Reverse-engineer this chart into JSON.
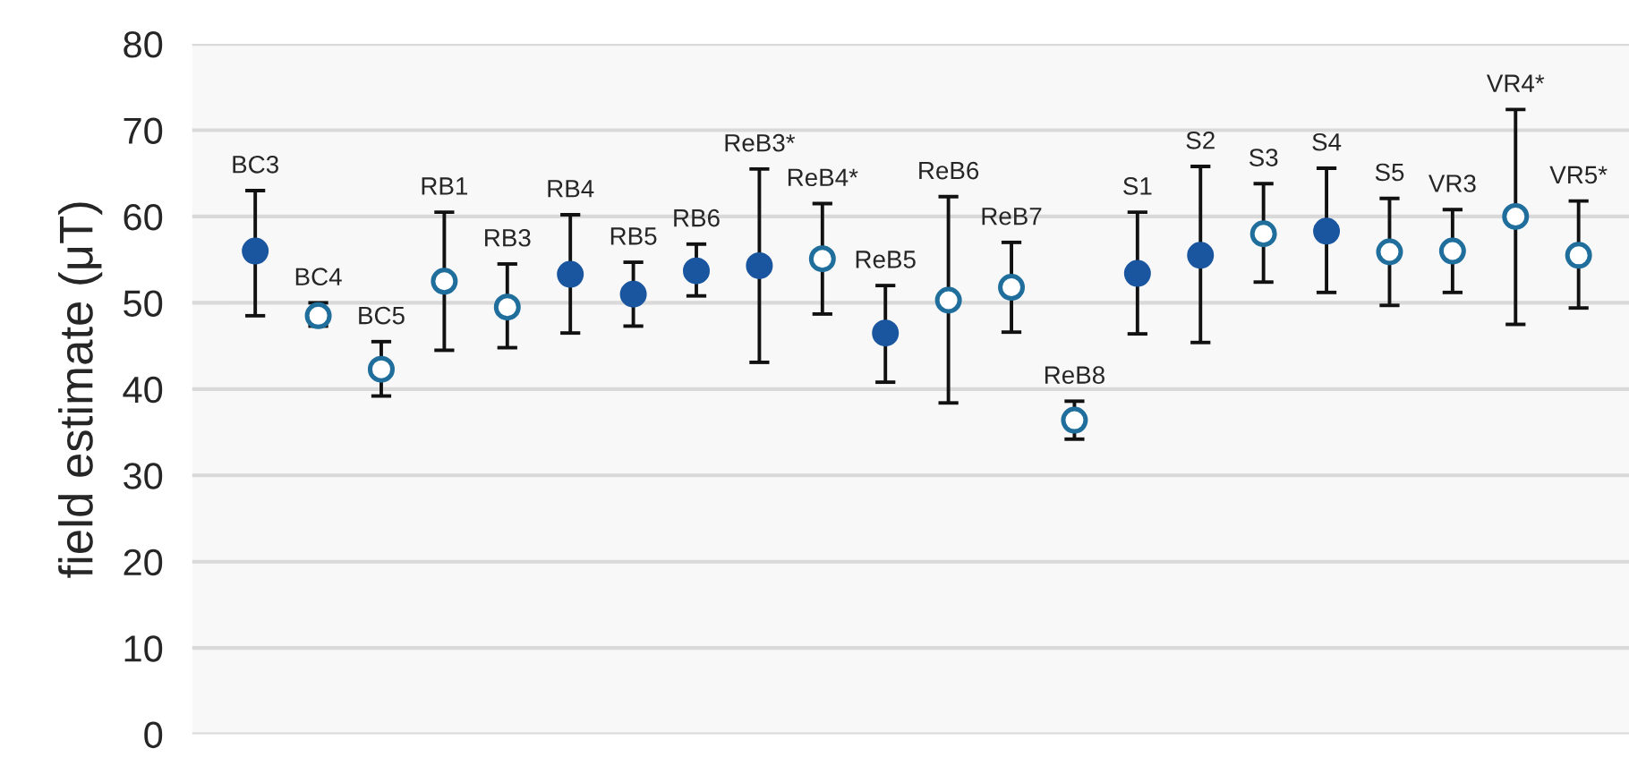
{
  "chart_data": {
    "type": "scatter",
    "ylabel": "field estimate (μT)",
    "categories": [
      "BC3",
      "BC4",
      "BC5",
      "RB1",
      "RB3",
      "RB4",
      "RB5",
      "RB6",
      "ReB3*",
      "ReB4*",
      "ReB5",
      "ReB6",
      "ReB7",
      "ReB8",
      "S1",
      "S2",
      "S3",
      "S4",
      "S5",
      "VR3",
      "VR4*",
      "VR5*"
    ],
    "series": [
      {
        "color": "#1a56a0",
        "marker": "circle",
        "values": [
          56,
          null,
          null,
          null,
          null,
          53.3,
          51,
          53.7,
          54.3,
          null,
          46.5,
          null,
          null,
          null,
          53.4,
          55.5,
          null,
          58.3,
          null,
          null,
          null,
          null
        ],
        "errors": [
          [
            48.5,
            63
          ],
          null,
          null,
          null,
          null,
          [
            46.5,
            60.2
          ],
          [
            47.3,
            54.7
          ],
          [
            50.8,
            56.8
          ],
          [
            43.1,
            65.5
          ],
          null,
          [
            40.8,
            52
          ],
          null,
          null,
          null,
          [
            46.4,
            60.5
          ],
          [
            45.4,
            65.8
          ],
          null,
          [
            51.2,
            65.6
          ],
          null,
          null,
          null,
          null
        ]
      },
      {
        "color": "#1f6e9c",
        "marker": "open circle",
        "values": [
          null,
          48.5,
          42.3,
          52.5,
          49.5,
          null,
          null,
          null,
          null,
          55.1,
          null,
          50.3,
          51.8,
          36.4,
          null,
          null,
          58,
          null,
          55.9,
          56,
          60,
          55.5
        ],
        "errors": [
          null,
          [
            47.3,
            50
          ],
          [
            39.2,
            45.5
          ],
          [
            44.5,
            60.5
          ],
          [
            44.8,
            54.5
          ],
          null,
          null,
          null,
          null,
          [
            48.7,
            61.5
          ],
          null,
          [
            38.4,
            62.3
          ],
          [
            46.6,
            57
          ],
          [
            34.2,
            38.6
          ],
          null,
          null,
          [
            52.4,
            63.8
          ],
          null,
          [
            49.7,
            62.1
          ],
          [
            51.2,
            60.8
          ],
          [
            47.5,
            72.4
          ],
          [
            49.4,
            61.8
          ]
        ]
      }
    ],
    "ylim": [
      0,
      80
    ],
    "yticks": [
      0,
      10,
      20,
      30,
      40,
      50,
      60,
      70,
      80
    ],
    "grid": "y",
    "tick_labels": "y"
  }
}
